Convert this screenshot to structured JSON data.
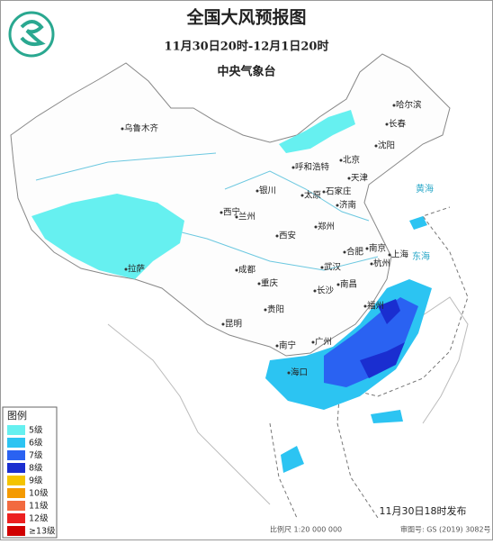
{
  "header": {
    "title": "全国大风预报图",
    "period": "11月30日20时-12月1日20时",
    "issuer": "中央气象台"
  },
  "cities": [
    "乌鲁木齐",
    "哈尔滨",
    "长春",
    "沈阳",
    "北京",
    "天津",
    "呼和浩特",
    "石家庄",
    "太原",
    "济南",
    "银川",
    "西宁",
    "兰州",
    "郑州",
    "西安",
    "合肥",
    "南京",
    "上海",
    "杭州",
    "武汉",
    "拉萨",
    "成都",
    "重庆",
    "南昌",
    "长沙",
    "福州",
    "贵阳",
    "昆明",
    "南宁",
    "广州",
    "海口"
  ],
  "seas": [
    "黄海",
    "东海"
  ],
  "legend": {
    "title": "图例",
    "items": [
      {
        "label": "5级",
        "color": "#66f0f0"
      },
      {
        "label": "6级",
        "color": "#2cc4f2"
      },
      {
        "label": "7级",
        "color": "#2a62f2"
      },
      {
        "label": "8级",
        "color": "#1a2ed0"
      },
      {
        "label": "9级",
        "color": "#f4c400"
      },
      {
        "label": "10级",
        "color": "#f49a00"
      },
      {
        "label": "11级",
        "color": "#f26a40"
      },
      {
        "label": "12级",
        "color": "#ec2020"
      },
      {
        "label": "≥13级",
        "color": "#d00000"
      }
    ]
  },
  "footer": {
    "release": "11月30日18时发布",
    "scale": "比例尺  1:20 000 000",
    "approval": "审图号: GS (2019) 3082号"
  }
}
